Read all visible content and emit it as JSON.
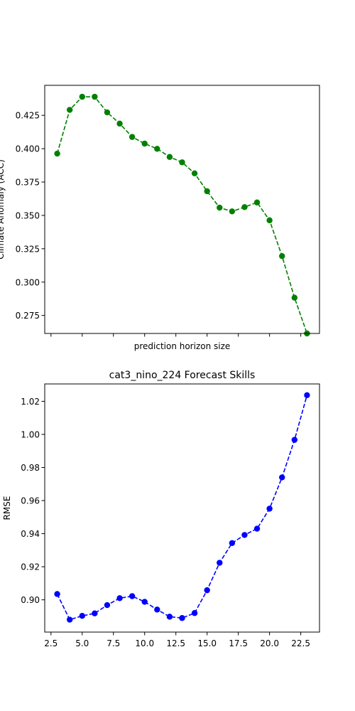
{
  "chart_data": [
    {
      "type": "line",
      "title": "",
      "xlabel": "prediction horizon size",
      "ylabel": "Climate Anomaly (ACC)",
      "x": [
        3,
        4,
        5,
        6,
        7,
        8,
        9,
        10,
        11,
        12,
        13,
        14,
        15,
        16,
        17,
        18,
        19,
        20,
        21,
        22,
        23
      ],
      "xlim": [
        2.0,
        24.0
      ],
      "xticks": [
        2.5,
        5.0,
        7.5,
        10.0,
        12.5,
        15.0,
        17.5,
        20.0,
        22.5
      ],
      "xtick_labels_shown": false,
      "ylim": [
        0.2615,
        0.4475
      ],
      "yticks": [
        0.275,
        0.3,
        0.325,
        0.35,
        0.375,
        0.4,
        0.425
      ],
      "ytick_labels": [
        "0.275",
        "0.300",
        "0.325",
        "0.350",
        "0.375",
        "0.400",
        "0.425"
      ],
      "grid": false,
      "series": [
        {
          "values": [
            0.3963,
            0.4291,
            0.4389,
            0.4389,
            0.4272,
            0.4188,
            0.4088,
            0.4038,
            0.3999,
            0.3938,
            0.3898,
            0.3815,
            0.3681,
            0.3558,
            0.353,
            0.3562,
            0.3597,
            0.3463,
            0.3195,
            0.2883,
            0.2615
          ],
          "color": "#008000",
          "linestyle": "dashed",
          "marker": "circle"
        }
      ]
    },
    {
      "type": "line",
      "title": "cat3_nino_224 Forecast Skills",
      "xlabel": "",
      "ylabel": "RMSE",
      "x": [
        3,
        4,
        5,
        6,
        7,
        8,
        9,
        10,
        11,
        12,
        13,
        14,
        15,
        16,
        17,
        18,
        19,
        20,
        21,
        22,
        23
      ],
      "xlim": [
        2.0,
        24.0
      ],
      "xticks": [
        2.5,
        5.0,
        7.5,
        10.0,
        12.5,
        15.0,
        17.5,
        20.0,
        22.5
      ],
      "xtick_labels": [
        "2.5",
        "5.0",
        "7.5",
        "10.0",
        "12.5",
        "15.0",
        "17.5",
        "20.0",
        "22.5"
      ],
      "ylim": [
        0.8805,
        1.0305
      ],
      "yticks": [
        0.9,
        0.92,
        0.94,
        0.96,
        0.98,
        1.0,
        1.02
      ],
      "ytick_labels": [
        "0.90",
        "0.92",
        "0.94",
        "0.96",
        "0.98",
        "1.00",
        "1.02"
      ],
      "grid": false,
      "series": [
        {
          "values": [
            0.9035,
            0.888,
            0.8903,
            0.8918,
            0.8968,
            0.901,
            0.9022,
            0.8988,
            0.8941,
            0.8898,
            0.889,
            0.892,
            0.9058,
            0.9224,
            0.9343,
            0.9392,
            0.943,
            0.9551,
            0.974,
            0.9967,
            1.0237
          ],
          "color": "#0000ff",
          "linestyle": "dashed",
          "marker": "circle"
        }
      ]
    }
  ]
}
